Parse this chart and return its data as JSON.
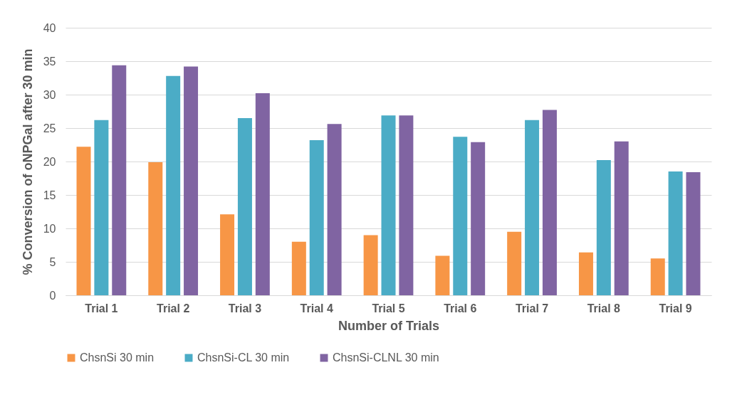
{
  "chart_data": {
    "type": "bar",
    "xlabel": "Number of Trials",
    "ylabel": "% Conversion of oNPGal after 30 min",
    "categories": [
      "Trial 1",
      "Trial 2",
      "Trial 3",
      "Trial 4",
      "Trial 5",
      "Trial 6",
      "Trial 7",
      "Trial 8",
      "Trial 9"
    ],
    "series": [
      {
        "name": "ChsnSi 30 min",
        "color": "#f79646",
        "values": [
          22.2,
          19.9,
          12.1,
          8.0,
          9.0,
          5.9,
          9.5,
          6.4,
          5.5
        ]
      },
      {
        "name": "ChsnSi-CL 30 min",
        "color": "#4bacc6",
        "values": [
          26.2,
          32.8,
          26.5,
          23.2,
          26.9,
          23.7,
          26.2,
          20.2,
          18.5
        ]
      },
      {
        "name": "ChsnSi-CLNL 30 min",
        "color": "#8064a2",
        "values": [
          34.4,
          34.2,
          30.2,
          25.6,
          26.9,
          22.9,
          27.7,
          23.0,
          18.4
        ]
      }
    ],
    "ylim": [
      0,
      40
    ],
    "yticks": [
      0,
      5,
      10,
      15,
      20,
      25,
      30,
      35,
      40
    ],
    "grid": "y",
    "legend": "bottom"
  }
}
